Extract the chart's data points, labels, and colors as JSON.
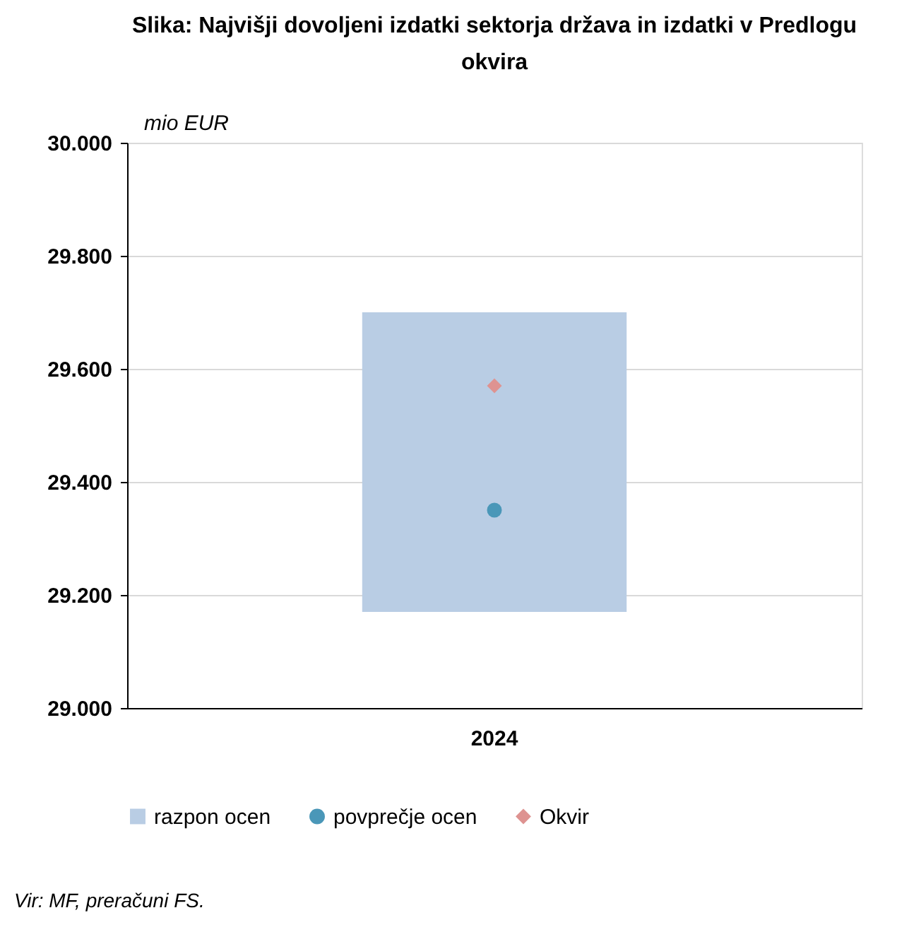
{
  "chart_data": {
    "type": "bar",
    "title": "Slika: Najvišji dovoljeni izdatki sektorja država in izdatki v Predlogu okvira",
    "ylabel": "mio EUR",
    "categories": [
      "2024"
    ],
    "series": [
      {
        "name": "razpon ocen",
        "color": "#b9cde4",
        "base": [
          29170
        ],
        "values": [
          530
        ]
      },
      {
        "name": "povprečje ocen",
        "type": "scatter",
        "marker": "circle",
        "color": "#4a97b8",
        "values": [
          29350
        ]
      },
      {
        "name": "Okvir",
        "type": "scatter",
        "marker": "diamond",
        "color": "#de9391",
        "values": [
          29570
        ]
      }
    ],
    "ylim": [
      29000,
      30000
    ],
    "yticks": [
      {
        "value": 29000,
        "label": "29.000"
      },
      {
        "value": 29200,
        "label": "29.200"
      },
      {
        "value": 29400,
        "label": "29.400"
      },
      {
        "value": 29600,
        "label": "29.600"
      },
      {
        "value": 29800,
        "label": "29.800"
      },
      {
        "value": 30000,
        "label": "30.000"
      }
    ],
    "grid": "y",
    "legend": "bottom",
    "annotations": [
      "Vir: MF, preračuni FS."
    ]
  }
}
